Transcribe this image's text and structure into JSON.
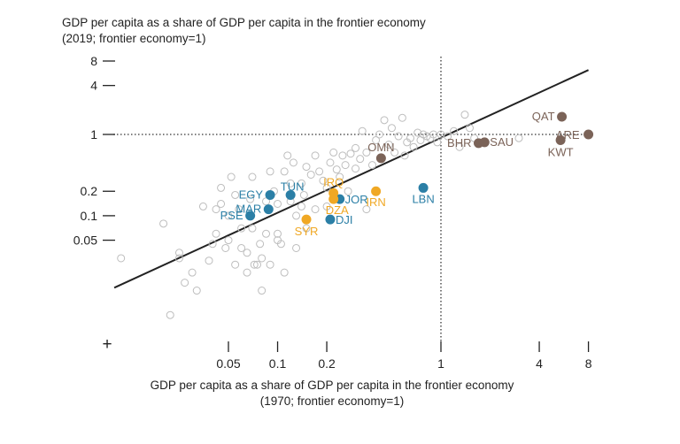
{
  "chart_data": {
    "type": "scatter",
    "title": "",
    "ylabel_line1": "GDP per capita as a share of GDP per capita in the frontier economy",
    "ylabel_line2": "(2019; frontier economy=1)",
    "xlabel_line1": "GDP per capita as a share of GDP per capita in the frontier economy",
    "xlabel_line2": "(1970; frontier economy=1)",
    "x_scale": "log",
    "y_scale": "log",
    "xlim": [
      0.01,
      9
    ],
    "ylim": [
      0.004,
      11
    ],
    "x_ticks": [
      {
        "value": 0.05,
        "label": "0.05"
      },
      {
        "value": 0.1,
        "label": "0.1"
      },
      {
        "value": 0.2,
        "label": "0.2"
      },
      {
        "value": 1,
        "label": "1"
      },
      {
        "value": 4,
        "label": "4"
      },
      {
        "value": 8,
        "label": "8"
      }
    ],
    "y_ticks": [
      {
        "value": 8,
        "label": "8"
      },
      {
        "value": 4,
        "label": "4"
      },
      {
        "value": 1,
        "label": "1"
      },
      {
        "value": 0.2,
        "label": "0.2"
      },
      {
        "value": 0.1,
        "label": "0.1"
      },
      {
        "value": 0.05,
        "label": "0.05"
      }
    ],
    "origin_marker": "+",
    "reference_lines": {
      "x": 1,
      "y": 1,
      "style": "dotted"
    },
    "fit_line": {
      "x": [
        0.01,
        8
      ],
      "y": [
        0.013,
        6.2
      ]
    },
    "colors": {
      "other": "#bdbdbd",
      "blue": "#2b7fa6",
      "orange": "#f0a824",
      "brown": "#7b6358",
      "fit": "#222222",
      "blue_text": "#2b7fa6",
      "orange_text": "#f0a824",
      "brown_text": "#7b6358"
    },
    "highlighted": [
      {
        "label": "EGY",
        "x": 0.09,
        "y": 0.18,
        "group": "blue"
      },
      {
        "label": "TUN",
        "x": 0.12,
        "y": 0.18,
        "group": "blue"
      },
      {
        "label": "MAR",
        "x": 0.088,
        "y": 0.12,
        "group": "blue"
      },
      {
        "label": "PSE",
        "x": 0.068,
        "y": 0.1,
        "group": "blue"
      },
      {
        "label": "JOR",
        "x": 0.24,
        "y": 0.16,
        "group": "blue"
      },
      {
        "label": "DJI",
        "x": 0.21,
        "y": 0.09,
        "group": "blue"
      },
      {
        "label": "LBN",
        "x": 0.78,
        "y": 0.22,
        "group": "blue"
      },
      {
        "label": "IRQ",
        "x": 0.22,
        "y": 0.19,
        "group": "orange"
      },
      {
        "label": "DZA",
        "x": 0.22,
        "y": 0.16,
        "group": "orange"
      },
      {
        "label": "SYR",
        "x": 0.15,
        "y": 0.09,
        "group": "orange"
      },
      {
        "label": "IRN",
        "x": 0.4,
        "y": 0.2,
        "group": "orange"
      },
      {
        "label": "OMN",
        "x": 0.43,
        "y": 0.51,
        "group": "brown"
      },
      {
        "label": "BHR",
        "x": 1.7,
        "y": 0.78,
        "group": "brown"
      },
      {
        "label": "SAU",
        "x": 1.85,
        "y": 0.8,
        "group": "brown"
      },
      {
        "label": "QAT",
        "x": 5.5,
        "y": 1.65,
        "group": "brown"
      },
      {
        "label": "ARE",
        "x": 8,
        "y": 1.0,
        "group": "brown"
      },
      {
        "label": "KWT",
        "x": 5.4,
        "y": 0.85,
        "group": "brown"
      }
    ],
    "other_points": [
      [
        0.011,
        0.03
      ],
      [
        0.02,
        0.08
      ],
      [
        0.022,
        0.006
      ],
      [
        0.025,
        0.035
      ],
      [
        0.025,
        0.03
      ],
      [
        0.027,
        0.015
      ],
      [
        0.03,
        0.02
      ],
      [
        0.032,
        0.012
      ],
      [
        0.035,
        0.13
      ],
      [
        0.038,
        0.028
      ],
      [
        0.04,
        0.045
      ],
      [
        0.042,
        0.12
      ],
      [
        0.042,
        0.06
      ],
      [
        0.045,
        0.22
      ],
      [
        0.045,
        0.14
      ],
      [
        0.048,
        0.04
      ],
      [
        0.05,
        0.05
      ],
      [
        0.05,
        0.1
      ],
      [
        0.052,
        0.3
      ],
      [
        0.055,
        0.18
      ],
      [
        0.055,
        0.025
      ],
      [
        0.058,
        0.12
      ],
      [
        0.06,
        0.07
      ],
      [
        0.06,
        0.04
      ],
      [
        0.065,
        0.035
      ],
      [
        0.065,
        0.02
      ],
      [
        0.068,
        0.16
      ],
      [
        0.07,
        0.3
      ],
      [
        0.07,
        0.07
      ],
      [
        0.072,
        0.025
      ],
      [
        0.075,
        0.025
      ],
      [
        0.078,
        0.045
      ],
      [
        0.08,
        0.012
      ],
      [
        0.08,
        0.03
      ],
      [
        0.085,
        0.06
      ],
      [
        0.085,
        0.15
      ],
      [
        0.09,
        0.35
      ],
      [
        0.09,
        0.025
      ],
      [
        0.095,
        0.2
      ],
      [
        0.1,
        0.14
      ],
      [
        0.1,
        0.06
      ],
      [
        0.1,
        0.05
      ],
      [
        0.105,
        0.045
      ],
      [
        0.11,
        0.35
      ],
      [
        0.11,
        0.02
      ],
      [
        0.115,
        0.55
      ],
      [
        0.12,
        0.15
      ],
      [
        0.12,
        0.25
      ],
      [
        0.125,
        0.45
      ],
      [
        0.13,
        0.1
      ],
      [
        0.13,
        0.04
      ],
      [
        0.14,
        0.25
      ],
      [
        0.14,
        0.13
      ],
      [
        0.145,
        0.18
      ],
      [
        0.15,
        0.4
      ],
      [
        0.15,
        0.07
      ],
      [
        0.16,
        0.32
      ],
      [
        0.17,
        0.55
      ],
      [
        0.17,
        0.12
      ],
      [
        0.18,
        0.35
      ],
      [
        0.19,
        0.27
      ],
      [
        0.2,
        0.22
      ],
      [
        0.2,
        0.13
      ],
      [
        0.21,
        0.45
      ],
      [
        0.22,
        0.6
      ],
      [
        0.23,
        0.37
      ],
      [
        0.24,
        0.3
      ],
      [
        0.25,
        0.55
      ],
      [
        0.26,
        0.42
      ],
      [
        0.27,
        0.2
      ],
      [
        0.28,
        0.58
      ],
      [
        0.3,
        0.68
      ],
      [
        0.3,
        0.38
      ],
      [
        0.32,
        0.5
      ],
      [
        0.33,
        1.1
      ],
      [
        0.35,
        0.6
      ],
      [
        0.35,
        0.12
      ],
      [
        0.38,
        0.42
      ],
      [
        0.4,
        0.85
      ],
      [
        0.42,
        1.0
      ],
      [
        0.45,
        1.5
      ],
      [
        0.48,
        0.75
      ],
      [
        0.5,
        1.2
      ],
      [
        0.52,
        0.6
      ],
      [
        0.55,
        0.95
      ],
      [
        0.58,
        1.6
      ],
      [
        0.6,
        0.55
      ],
      [
        0.62,
        0.8
      ],
      [
        0.65,
        0.9
      ],
      [
        0.68,
        0.7
      ],
      [
        0.72,
        1.05
      ],
      [
        0.75,
        0.85
      ],
      [
        0.78,
        1.0
      ],
      [
        0.82,
        0.95
      ],
      [
        0.86,
        0.9
      ],
      [
        0.9,
        1.0
      ],
      [
        0.95,
        0.8
      ],
      [
        1.0,
        1.0
      ],
      [
        1.1,
        0.95
      ],
      [
        1.2,
        1.1
      ],
      [
        1.3,
        0.7
      ],
      [
        1.4,
        1.75
      ],
      [
        1.5,
        1.2
      ],
      [
        1.6,
        0.9
      ],
      [
        3.0,
        0.9
      ]
    ]
  }
}
